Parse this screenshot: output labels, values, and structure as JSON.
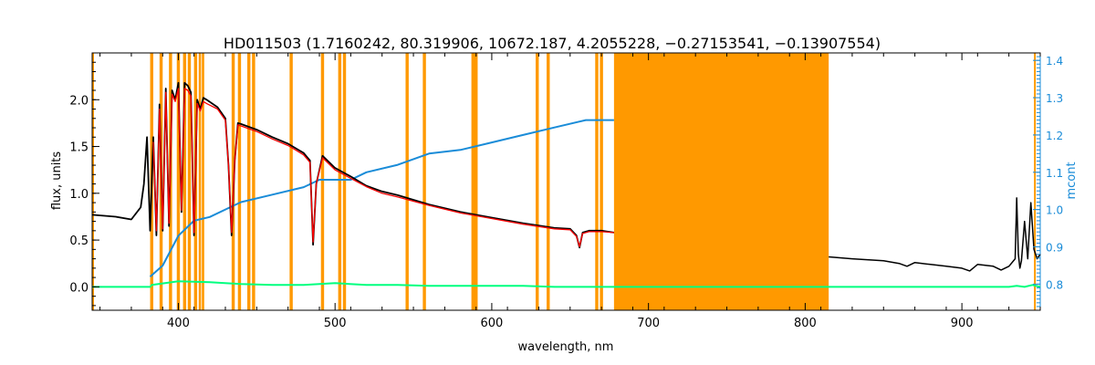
{
  "chart_data": {
    "type": "line",
    "title": "HD011503    (1.7160242, 80.319906, 10672.187, 4.2055228, −0.27153541, −0.13907554)",
    "xlabel": "wavelength, nm",
    "ylabel": "flux, units",
    "y2label": "mcont",
    "xlim": [
      345,
      950
    ],
    "ylim": [
      -0.25,
      2.5
    ],
    "y2lim": [
      0.73,
      1.42
    ],
    "xticks": [
      400,
      500,
      600,
      700,
      800,
      900
    ],
    "yticks": [
      0.0,
      0.5,
      1.0,
      1.5,
      2.0
    ],
    "y2ticks": [
      0.8,
      0.9,
      1.0,
      1.1,
      1.2,
      1.3,
      1.4
    ],
    "colors": {
      "observed": "#000000",
      "model": "#ff0000",
      "residual": "#00ff7f",
      "continuum": "#1a8cd8",
      "masked": "#ff9900"
    },
    "masked_regions": [
      [
        345,
        346
      ],
      [
        382,
        384
      ],
      [
        388,
        390
      ],
      [
        394,
        396
      ],
      [
        399,
        401
      ],
      [
        403,
        405
      ],
      [
        406,
        408
      ],
      [
        410,
        412
      ],
      [
        413,
        414.5
      ],
      [
        415,
        416.5
      ],
      [
        434,
        436
      ],
      [
        438,
        440
      ],
      [
        444,
        446
      ],
      [
        447,
        449
      ],
      [
        471,
        473
      ],
      [
        491,
        493
      ],
      [
        502,
        504
      ],
      [
        505,
        507
      ],
      [
        545,
        547
      ],
      [
        556,
        558
      ],
      [
        587,
        591
      ],
      [
        628,
        630
      ],
      [
        635,
        637
      ],
      [
        666,
        668
      ],
      [
        669,
        671
      ],
      [
        678,
        815
      ],
      [
        946,
        947
      ]
    ],
    "observed_spectrum": {
      "x": [
        345,
        360,
        370,
        376,
        378,
        380,
        382,
        384,
        386,
        388,
        390,
        392,
        394,
        396,
        398,
        400,
        402,
        404,
        406,
        408,
        410,
        412,
        414,
        416,
        418,
        425,
        430,
        432,
        434,
        436,
        438,
        440,
        450,
        460,
        470,
        475,
        480,
        484,
        486,
        488,
        492,
        500,
        510,
        520,
        530,
        540,
        560,
        580,
        600,
        620,
        640,
        650,
        654,
        656,
        658,
        662,
        670,
        678
      ],
      "y": [
        0.77,
        0.75,
        0.72,
        0.85,
        1.1,
        1.6,
        0.6,
        1.6,
        0.55,
        1.95,
        0.6,
        2.12,
        0.65,
        2.1,
        2.0,
        2.18,
        0.8,
        2.18,
        2.15,
        2.08,
        0.55,
        2.0,
        1.9,
        2.02,
        2.0,
        1.92,
        1.8,
        1.3,
        0.55,
        1.35,
        1.75,
        1.74,
        1.68,
        1.6,
        1.53,
        1.48,
        1.43,
        1.35,
        0.45,
        1.1,
        1.4,
        1.27,
        1.18,
        1.08,
        1.02,
        0.98,
        0.88,
        0.8,
        0.74,
        0.68,
        0.63,
        0.62,
        0.55,
        0.42,
        0.58,
        0.6,
        0.6,
        0.58
      ]
    },
    "observed_spectrum_red": {
      "x": [
        815,
        830,
        850,
        860,
        865,
        870,
        880,
        890,
        900,
        905,
        910,
        920,
        925,
        930,
        934,
        935,
        936,
        937,
        938,
        940,
        942,
        944,
        946,
        948,
        950
      ],
      "y": [
        0.32,
        0.3,
        0.28,
        0.25,
        0.22,
        0.26,
        0.24,
        0.22,
        0.2,
        0.17,
        0.24,
        0.22,
        0.18,
        0.22,
        0.3,
        0.95,
        0.35,
        0.2,
        0.28,
        0.7,
        0.3,
        0.9,
        0.4,
        0.3,
        0.35
      ]
    },
    "model_spectrum": {
      "x": [
        384,
        386,
        388,
        390,
        392,
        394,
        396,
        398,
        400,
        402,
        404,
        406,
        408,
        410,
        412,
        414,
        416,
        418,
        425,
        430,
        432,
        434,
        436,
        438,
        440,
        450,
        460,
        470,
        475,
        480,
        484,
        486,
        488,
        492,
        500,
        510,
        520,
        530,
        540,
        560,
        580,
        600,
        620,
        640,
        650,
        654,
        656,
        658,
        662,
        670,
        678
      ],
      "y": [
        1.55,
        0.6,
        1.9,
        0.62,
        2.08,
        0.68,
        2.06,
        1.98,
        2.12,
        0.82,
        2.12,
        2.1,
        2.04,
        0.58,
        1.96,
        1.88,
        1.98,
        1.96,
        1.9,
        1.78,
        1.3,
        0.58,
        1.35,
        1.73,
        1.72,
        1.66,
        1.58,
        1.51,
        1.46,
        1.41,
        1.33,
        0.48,
        1.1,
        1.38,
        1.25,
        1.16,
        1.07,
        1.0,
        0.96,
        0.87,
        0.79,
        0.73,
        0.67,
        0.62,
        0.61,
        0.54,
        0.43,
        0.57,
        0.59,
        0.59,
        0.58
      ]
    },
    "residual": {
      "x": [
        345,
        382,
        383,
        400,
        420,
        440,
        460,
        480,
        500,
        520,
        540,
        560,
        580,
        600,
        620,
        640,
        660,
        678,
        815,
        850,
        900,
        930,
        935,
        940,
        945,
        950
      ],
      "y": [
        0.0,
        0.0,
        0.02,
        0.06,
        0.05,
        0.03,
        0.02,
        0.02,
        0.04,
        0.02,
        0.02,
        0.01,
        0.01,
        0.01,
        0.01,
        0.0,
        0.0,
        0.0,
        0.0,
        0.0,
        0.0,
        0.0,
        0.01,
        0.0,
        0.02,
        0.0
      ]
    },
    "continuum": {
      "x": [
        382,
        390,
        400,
        410,
        420,
        440,
        460,
        480,
        490,
        500,
        510,
        520,
        540,
        560,
        580,
        600,
        620,
        640,
        660,
        678
      ],
      "y2": [
        0.82,
        0.85,
        0.93,
        0.97,
        0.98,
        1.02,
        1.04,
        1.06,
        1.08,
        1.08,
        1.08,
        1.1,
        1.12,
        1.15,
        1.16,
        1.18,
        1.2,
        1.22,
        1.24,
        1.24
      ]
    }
  }
}
